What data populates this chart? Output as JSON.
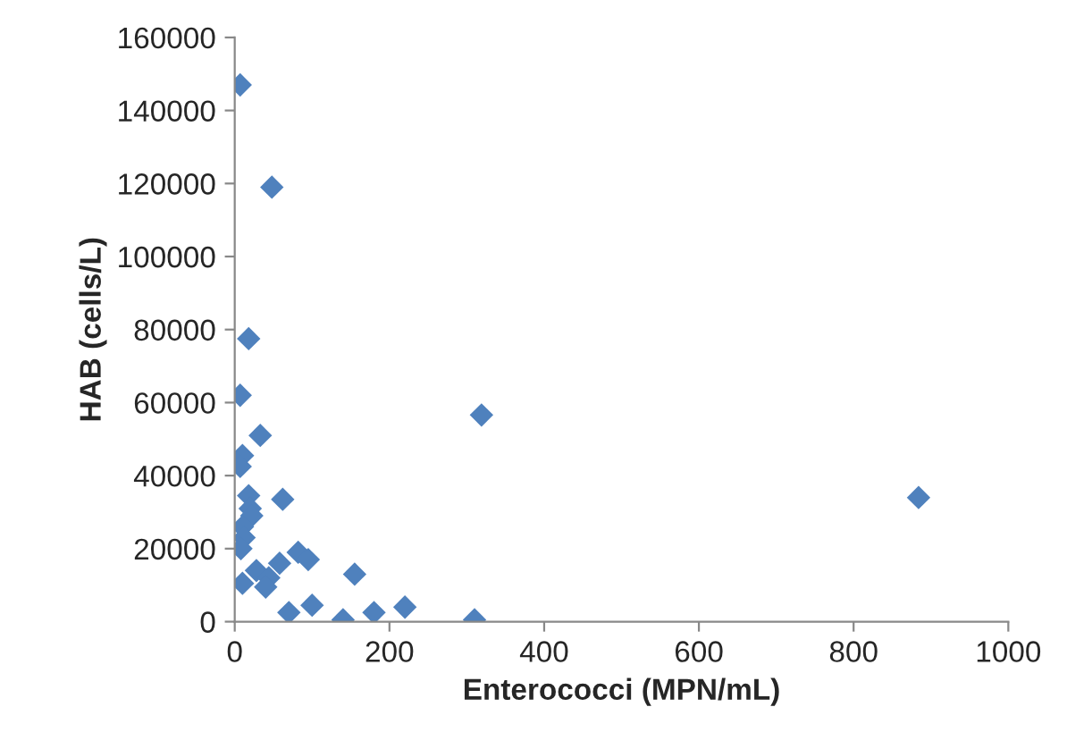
{
  "chart_data": {
    "type": "scatter",
    "xlabel": "Enterococci (MPN/mL)",
    "ylabel": "HAB (cells/L)",
    "xlim": [
      0,
      1000
    ],
    "xticks": [
      0,
      200,
      400,
      600,
      800,
      1000
    ],
    "ylim": [
      0,
      160000
    ],
    "yticks": [
      0,
      20000,
      40000,
      60000,
      80000,
      100000,
      120000,
      140000,
      160000
    ],
    "marker": "diamond",
    "grid": false,
    "legend": false,
    "series": [
      {
        "color": "#4f81bd",
        "x": [
          7,
          48,
          18,
          7,
          33,
          10,
          7,
          319,
          884,
          62,
          18,
          20,
          22,
          10,
          12,
          8,
          82,
          95,
          58,
          35,
          28,
          155,
          44,
          100,
          220,
          180,
          140,
          310,
          70,
          40,
          10
        ],
        "values": [
          147000,
          119000,
          77500,
          62000,
          51000,
          45500,
          42500,
          56600,
          34000,
          33500,
          34500,
          31000,
          29000,
          26000,
          23000,
          20000,
          19000,
          17000,
          16000,
          null,
          14000,
          13000,
          12000,
          4500,
          4000,
          2500,
          500,
          500,
          2500,
          9500,
          10500
        ]
      }
    ]
  }
}
